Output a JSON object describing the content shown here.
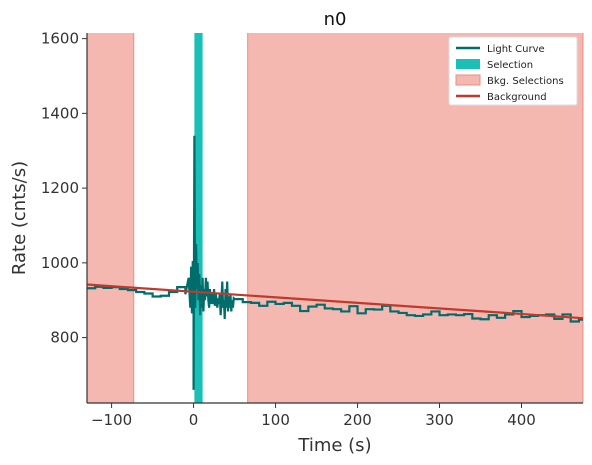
{
  "chart_data": {
    "type": "line",
    "title": "n0",
    "xlabel": "Time (s)",
    "ylabel": "Rate (cnts/s)",
    "xlim": [
      -130,
      475
    ],
    "ylim": [
      625,
      1615
    ],
    "xticks": [
      -100,
      0,
      100,
      200,
      300,
      400
    ],
    "xtick_labels": [
      "−100",
      "0",
      "100",
      "200",
      "300",
      "400"
    ],
    "yticks": [
      800,
      1000,
      1200,
      1400,
      1600
    ],
    "ytick_labels": [
      "800",
      "1000",
      "1200",
      "1400",
      "1600"
    ],
    "grid": false,
    "legend_position": "top-right",
    "colors": {
      "light_curve": "#006d6d",
      "selection": "#1abfb5",
      "bkg_selection": "#f5b8b0",
      "bkg_selection_edge": "#ec8d82",
      "background": "#c0392b"
    },
    "legend": [
      {
        "label": "Light Curve",
        "kind": "line",
        "color_key": "light_curve"
      },
      {
        "label": "Selection",
        "kind": "patch",
        "color_key": "selection"
      },
      {
        "label": "Bkg. Selections",
        "kind": "patch",
        "color_key": "bkg_selection"
      },
      {
        "label": "Background",
        "kind": "line",
        "color_key": "background"
      }
    ],
    "bkg_selections": [
      [
        -130,
        -73
      ],
      [
        66,
        475
      ]
    ],
    "selection": [
      1,
      11
    ],
    "background_fit": {
      "x": [
        -130,
        475
      ],
      "y": [
        942,
        852
      ]
    },
    "light_curve": {
      "step": [
        [
          -130,
          932
        ],
        [
          -120,
          936
        ],
        [
          -110,
          933
        ],
        [
          -100,
          935
        ],
        [
          -90,
          930
        ],
        [
          -80,
          927
        ],
        [
          -70,
          922
        ],
        [
          -60,
          918
        ],
        [
          -50,
          910
        ],
        [
          -40,
          912
        ],
        [
          -30,
          922
        ],
        [
          -20,
          935
        ],
        [
          -10,
          916
        ],
        [
          0,
          920
        ],
        [
          50,
          903
        ],
        [
          60,
          895
        ],
        [
          70,
          893
        ],
        [
          80,
          885
        ],
        [
          90,
          896
        ],
        [
          100,
          890
        ],
        [
          110,
          893
        ],
        [
          120,
          885
        ],
        [
          130,
          871
        ],
        [
          140,
          883
        ],
        [
          150,
          888
        ],
        [
          160,
          878
        ],
        [
          170,
          876
        ],
        [
          180,
          870
        ],
        [
          190,
          884
        ],
        [
          200,
          865
        ],
        [
          210,
          876
        ],
        [
          220,
          875
        ],
        [
          230,
          885
        ],
        [
          240,
          870
        ],
        [
          250,
          866
        ],
        [
          260,
          860
        ],
        [
          270,
          858
        ],
        [
          280,
          862
        ],
        [
          290,
          870
        ],
        [
          300,
          860
        ],
        [
          310,
          862
        ],
        [
          320,
          860
        ],
        [
          330,
          863
        ],
        [
          340,
          851
        ],
        [
          350,
          849
        ],
        [
          360,
          860
        ],
        [
          370,
          853
        ],
        [
          380,
          862
        ],
        [
          390,
          871
        ],
        [
          400,
          855
        ],
        [
          410,
          858
        ],
        [
          420,
          860
        ],
        [
          430,
          862
        ],
        [
          440,
          850
        ],
        [
          450,
          862
        ],
        [
          460,
          843
        ],
        [
          470,
          848
        ]
      ],
      "spiky": [
        [
          0,
          660
        ],
        [
          1,
          1340
        ],
        [
          2,
          880
        ],
        [
          3,
          1050
        ],
        [
          4,
          930
        ],
        [
          5,
          1000
        ],
        [
          6,
          900
        ],
        [
          7,
          970
        ],
        [
          8,
          860
        ],
        [
          9,
          940
        ],
        [
          10,
          880
        ],
        [
          11,
          960
        ],
        [
          12,
          870
        ],
        [
          13,
          930
        ],
        [
          14,
          900
        ],
        [
          15,
          960
        ],
        [
          16,
          910
        ],
        [
          17,
          950
        ],
        [
          18,
          900
        ],
        [
          19,
          880
        ],
        [
          20,
          930
        ],
        [
          21,
          890
        ],
        [
          22,
          920
        ],
        [
          23,
          900
        ],
        [
          24,
          890
        ],
        [
          25,
          930
        ],
        [
          26,
          885
        ],
        [
          27,
          920
        ],
        [
          28,
          900
        ],
        [
          29,
          880
        ],
        [
          30,
          905
        ],
        [
          31,
          890
        ],
        [
          32,
          920
        ],
        [
          33,
          860
        ],
        [
          34,
          900
        ],
        [
          35,
          950
        ],
        [
          36,
          880
        ],
        [
          37,
          900
        ],
        [
          38,
          850
        ],
        [
          39,
          930
        ],
        [
          40,
          880
        ],
        [
          41,
          950
        ],
        [
          42,
          870
        ],
        [
          43,
          910
        ],
        [
          44,
          880
        ],
        [
          45,
          915
        ],
        [
          46,
          870
        ],
        [
          47,
          900
        ],
        [
          48,
          880
        ],
        [
          49,
          905
        ],
        [
          50,
          903
        ]
      ],
      "pre_spiky": [
        [
          -10,
          916
        ],
        [
          -6,
          960
        ],
        [
          -4,
          880
        ],
        [
          -3,
          990
        ],
        [
          -2,
          865
        ],
        [
          -1,
          1005
        ],
        [
          0,
          930
        ]
      ]
    }
  }
}
